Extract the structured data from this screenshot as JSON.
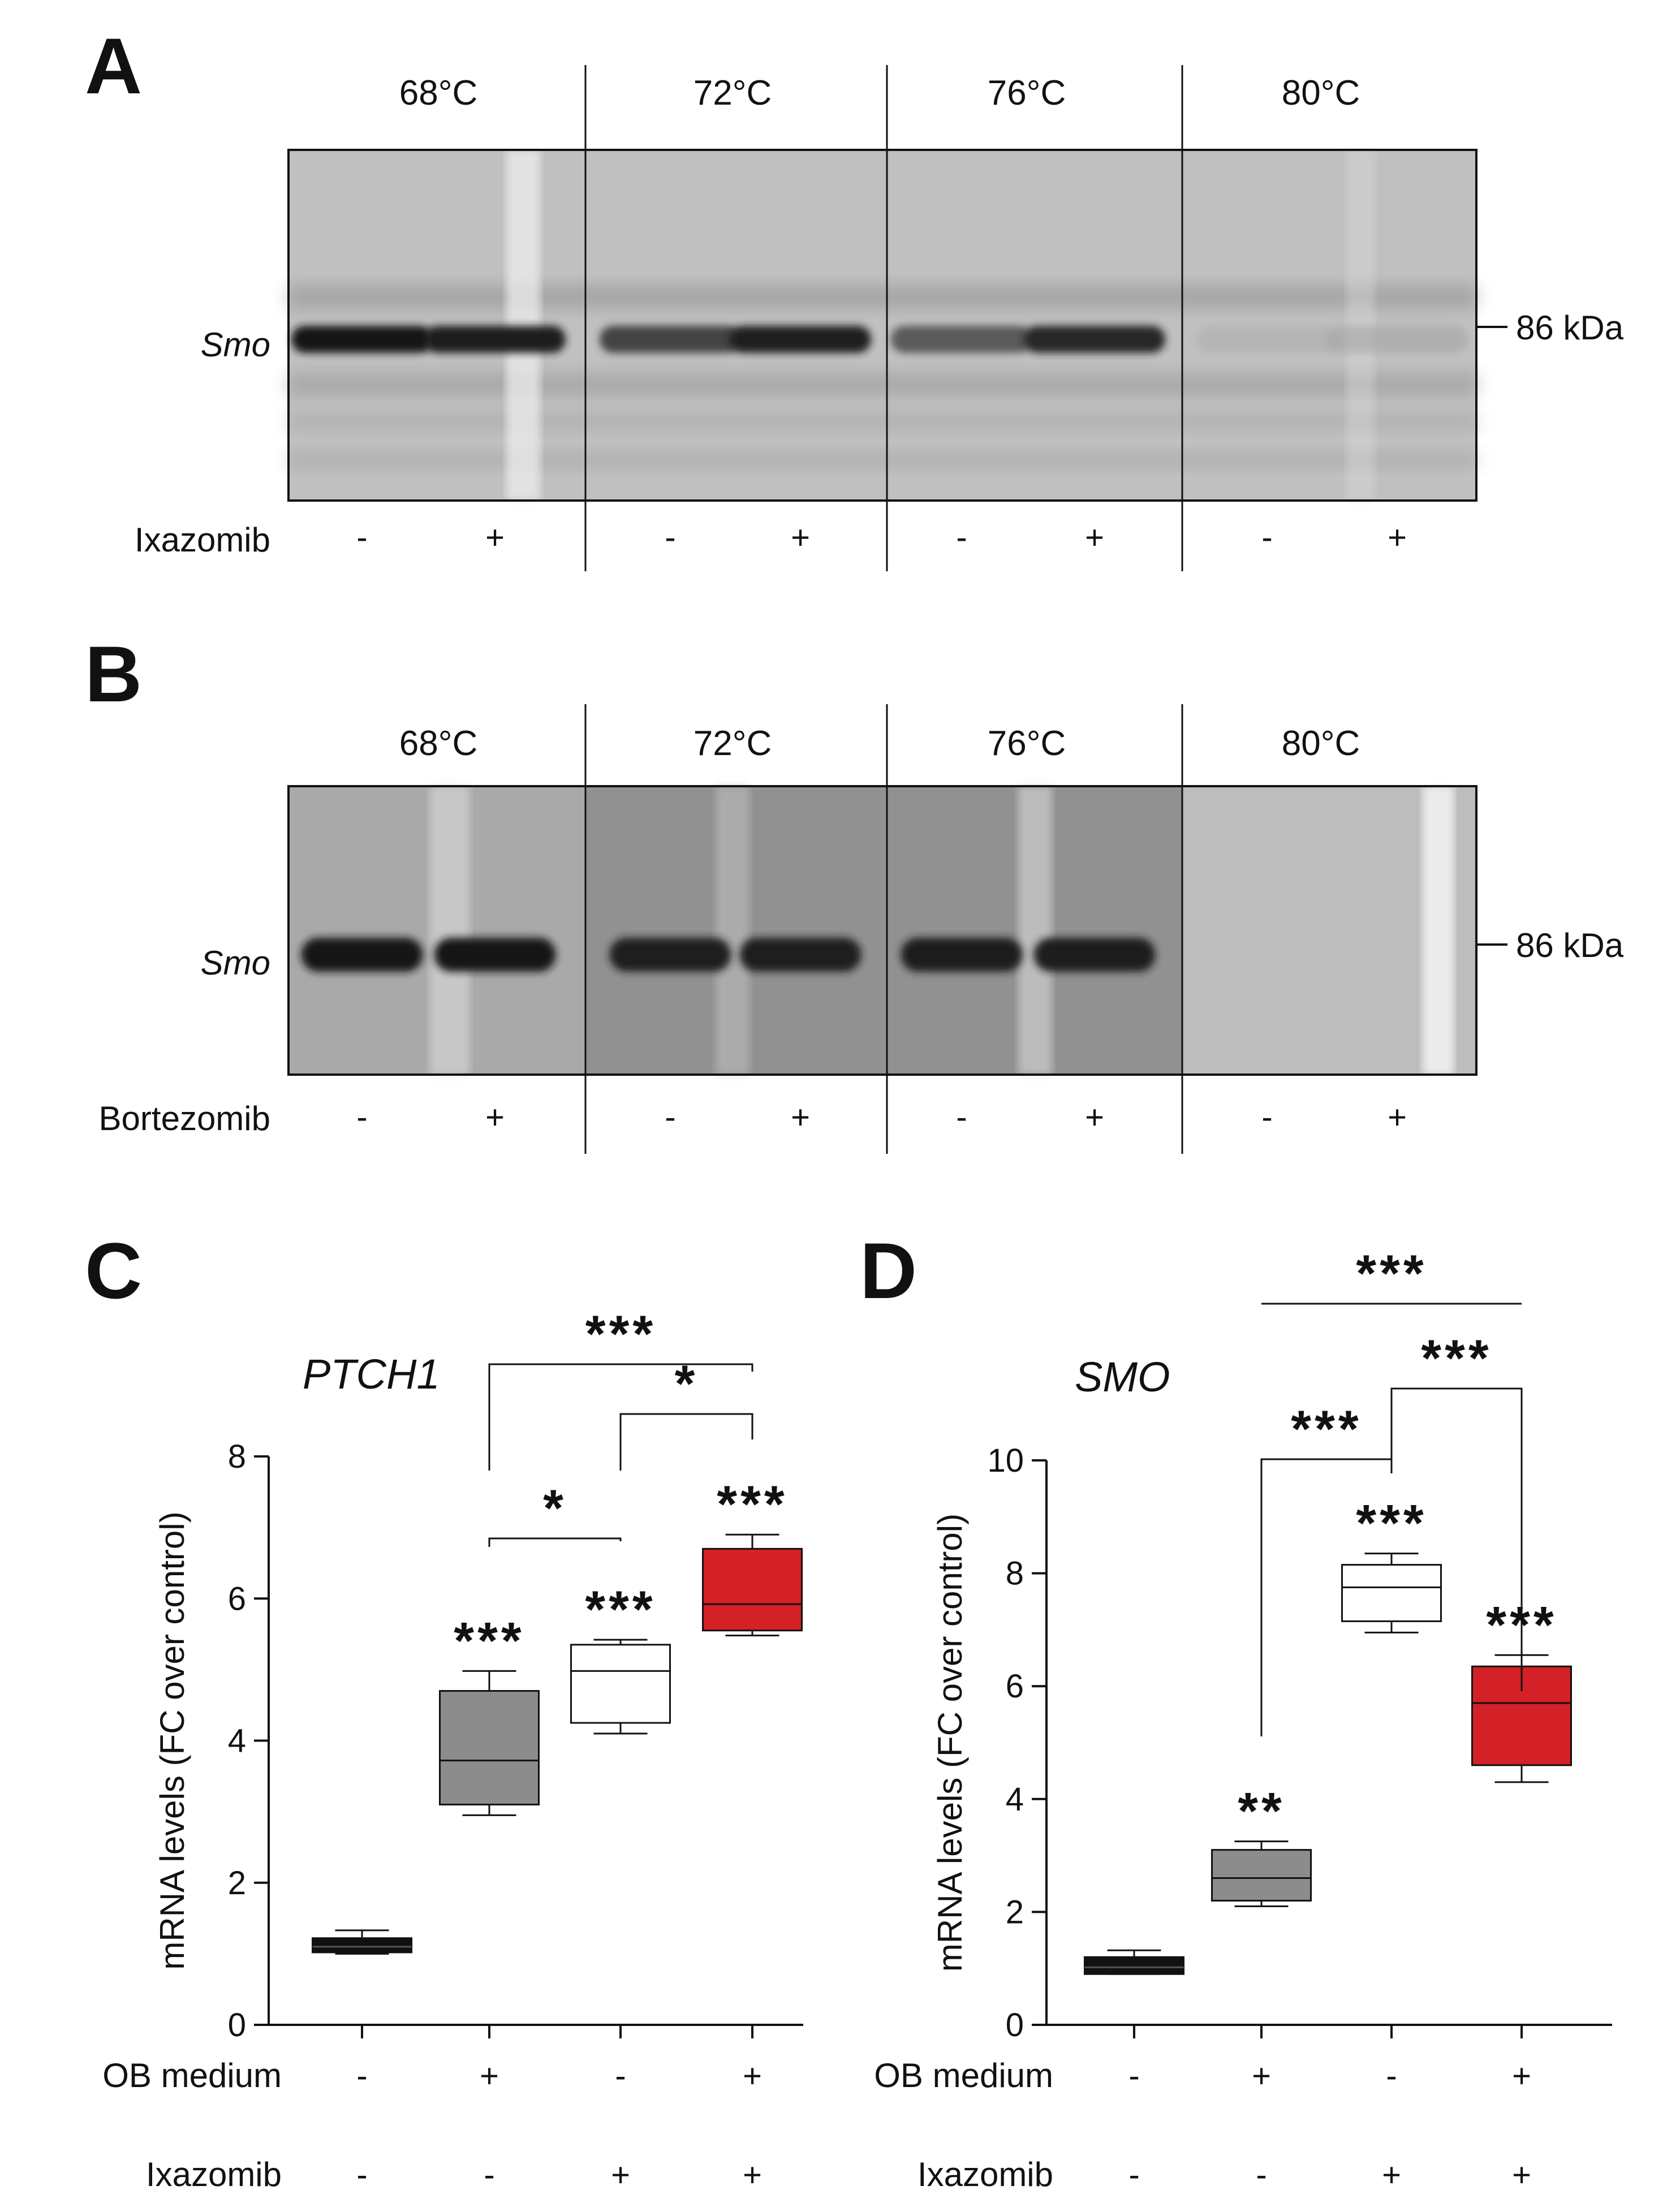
{
  "panels": {
    "A": {
      "letter": "A",
      "temperatures": [
        "68°C",
        "72°C",
        "76°C",
        "80°C"
      ],
      "band_label": "Smo",
      "marker": "86 kDa",
      "treatment_label": "Ixazomib",
      "treatment_signs": [
        "-",
        "+",
        "-",
        "+",
        "-",
        "+",
        "-",
        "+"
      ],
      "band_intensity": [
        0.95,
        0.92,
        0.78,
        0.9,
        0.7,
        0.88,
        0.2,
        0.25
      ]
    },
    "B": {
      "letter": "B",
      "temperatures": [
        "68°C",
        "72°C",
        "76°C",
        "80°C"
      ],
      "band_label": "Smo",
      "marker": "86 kDa",
      "treatment_label": "Bortezomib",
      "treatment_signs": [
        "-",
        "+",
        "-",
        "+",
        "-",
        "+",
        "-",
        "+"
      ],
      "band_intensity": [
        0.95,
        0.95,
        0.9,
        0.9,
        0.92,
        0.92,
        0.0,
        0.0
      ]
    },
    "C": {
      "letter": "C"
    },
    "D": {
      "letter": "D"
    }
  },
  "chart_data": [
    {
      "type": "box",
      "panel": "C",
      "title": "PTCH1",
      "ylabel": "mRNA levels (FC over control)",
      "ylim": [
        0,
        8
      ],
      "yticks": [
        0,
        2,
        4,
        6,
        8
      ],
      "factor_rows": [
        {
          "label": "OB medium",
          "signs": [
            "-",
            "+",
            "-",
            "+"
          ]
        },
        {
          "label": "Ixazomib",
          "signs": [
            "-",
            "-",
            "+",
            "+"
          ]
        }
      ],
      "groups": [
        {
          "fill": "#111111",
          "min": 1.0,
          "q1": 1.02,
          "median": 1.1,
          "q3": 1.22,
          "max": 1.33,
          "stars": ""
        },
        {
          "fill": "#8c8c8c",
          "min": 2.95,
          "q1": 3.1,
          "median": 3.72,
          "q3": 4.7,
          "max": 4.98,
          "stars": "***"
        },
        {
          "fill": "#ffffff",
          "min": 4.1,
          "q1": 4.25,
          "median": 4.98,
          "q3": 5.35,
          "max": 5.42,
          "stars": "***"
        },
        {
          "fill": "#d42027",
          "min": 5.48,
          "q1": 5.55,
          "median": 5.92,
          "q3": 6.7,
          "max": 6.9,
          "stars": "***"
        }
      ],
      "comparisons": [
        {
          "from": 1,
          "to": 2,
          "stars": "*"
        },
        {
          "from": 2,
          "to": 3,
          "stars": "*"
        },
        {
          "from": 1,
          "to": 3,
          "stars": "***"
        }
      ]
    },
    {
      "type": "box",
      "panel": "D",
      "title": "SMO",
      "ylabel": "mRNA levels (FC over control)",
      "ylim": [
        0,
        10
      ],
      "yticks": [
        0,
        2,
        4,
        6,
        8,
        10
      ],
      "factor_rows": [
        {
          "label": "OB medium",
          "signs": [
            "-",
            "+",
            "-",
            "+"
          ]
        },
        {
          "label": "Ixazomib",
          "signs": [
            "-",
            "-",
            "+",
            "+"
          ]
        }
      ],
      "groups": [
        {
          "fill": "#111111",
          "min": 0.9,
          "q1": 0.9,
          "median": 1.02,
          "q3": 1.2,
          "max": 1.32,
          "stars": ""
        },
        {
          "fill": "#8c8c8c",
          "min": 2.1,
          "q1": 2.2,
          "median": 2.6,
          "q3": 3.1,
          "max": 3.25,
          "stars": "**"
        },
        {
          "fill": "#ffffff",
          "min": 6.95,
          "q1": 7.15,
          "median": 7.75,
          "q3": 8.15,
          "max": 8.35,
          "stars": "***"
        },
        {
          "fill": "#d42027",
          "min": 4.3,
          "q1": 4.6,
          "median": 5.7,
          "q3": 6.35,
          "max": 6.55,
          "stars": "***"
        }
      ],
      "comparisons": [
        {
          "from": 1,
          "to": 2,
          "stars": "***"
        },
        {
          "from": 2,
          "to": 3,
          "stars": "***"
        },
        {
          "from": 1,
          "to": 3,
          "stars": "***"
        }
      ]
    }
  ]
}
